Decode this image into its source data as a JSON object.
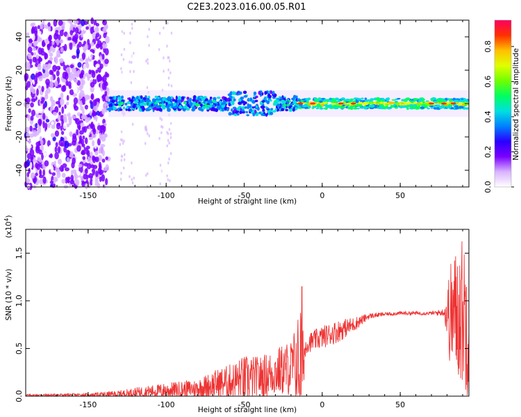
{
  "title": "C2E3.2023.016.00.05.R01",
  "chart_data": [
    {
      "type": "heatmap",
      "xlabel": "Height of straight line (km)",
      "ylabel": "Frequency (Hz)",
      "xlim": [
        -190,
        94
      ],
      "ylim": [
        -50,
        50
      ],
      "xticks": [
        -150,
        -100,
        -50,
        0,
        50
      ],
      "yticks": [
        -40,
        -20,
        0,
        20,
        40
      ],
      "colorbar": {
        "label": "Normalized spectral amplitude",
        "range": [
          0.0,
          0.95
        ],
        "ticks": [
          0.0,
          0.2,
          0.4,
          0.6,
          0.8
        ],
        "colors": [
          "#ffffff",
          "#d9b3ff",
          "#7a00ff",
          "#2a00ff",
          "#0080ff",
          "#00e0e0",
          "#00ff60",
          "#70ff00",
          "#e0ff00",
          "#ffc000",
          "#ff3000",
          "#ff0060"
        ]
      },
      "description_regions": [
        {
          "x_from": -190,
          "x_to": -137,
          "kind": "broadband noise",
          "amplitude": 0.15
        },
        {
          "x_from": -137,
          "x_to": -15,
          "kind": "signal band near 0 Hz",
          "amplitude": 0.35
        },
        {
          "x_from": -15,
          "x_to": 94,
          "kind": "strong signal band near 0 Hz",
          "amplitude": 0.55
        }
      ]
    },
    {
      "type": "line",
      "xlabel": "Height of straight line (km)",
      "ylabel": "SNR (10 * v/v)",
      "yunit_multiplier": "(x10",
      "yunit_exponent": "4",
      "yunit_close": ")",
      "xlim": [
        -190,
        94
      ],
      "ylim": [
        0,
        1.75
      ],
      "xticks": [
        -150,
        -100,
        -50,
        0,
        50
      ],
      "yticks": [
        0.0,
        0.5,
        1.0,
        1.5
      ],
      "color": "#ee3333",
      "envelope": {
        "x": [
          -190,
          -150,
          -130,
          -120,
          -100,
          -80,
          -70,
          -60,
          -50,
          -40,
          -30,
          -20,
          -16,
          -14,
          -12,
          -10,
          0,
          10,
          20,
          30,
          40,
          50,
          60,
          70,
          78,
          82,
          86,
          90,
          94
        ],
        "base": [
          0.01,
          0.015,
          0.02,
          0.04,
          0.06,
          0.08,
          0.12,
          0.15,
          0.18,
          0.2,
          0.25,
          0.3,
          0.35,
          0.3,
          0.4,
          0.55,
          0.62,
          0.68,
          0.75,
          0.84,
          0.86,
          0.87,
          0.87,
          0.87,
          0.88,
          0.85,
          0.88,
          0.9,
          0.8
        ],
        "amp": [
          0.01,
          0.015,
          0.04,
          0.05,
          0.08,
          0.1,
          0.15,
          0.18,
          0.25,
          0.22,
          0.25,
          0.3,
          0.45,
          0.8,
          0.3,
          0.1,
          0.12,
          0.12,
          0.08,
          0.03,
          0.02,
          0.02,
          0.02,
          0.02,
          0.04,
          0.55,
          0.7,
          0.8,
          0.85
        ]
      },
      "peak": {
        "x": -13,
        "y": 1.15
      }
    }
  ]
}
